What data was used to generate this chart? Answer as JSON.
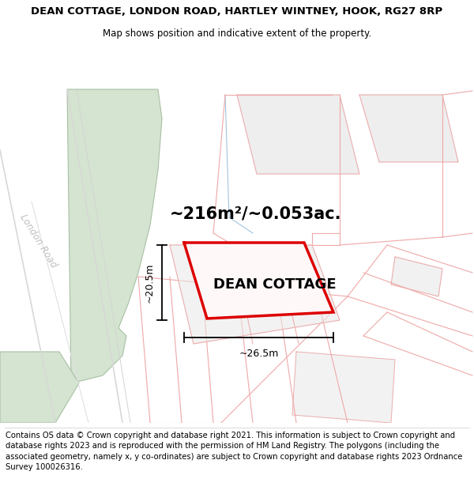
{
  "title_line1": "DEAN COTTAGE, LONDON ROAD, HARTLEY WINTNEY, HOOK, RG27 8RP",
  "title_line2": "Map shows position and indicative extent of the property.",
  "property_label": "DEAN COTTAGE",
  "area_text": "~216m²/~0.053ac.",
  "dim_height": "~20.5m",
  "dim_width": "~26.5m",
  "footer_text": "Contains OS data © Crown copyright and database right 2021. This information is subject to Crown copyright and database rights 2023 and is reproduced with the permission of HM Land Registry. The polygons (including the associated geometry, namely x, y co-ordinates) are subject to Crown copyright and database rights 2023 Ordnance Survey 100026316.",
  "bg_color": "#ffffff",
  "map_bg": "#f9f8f6",
  "boundary_color": "#f0a8a8",
  "highlight_color": "#dd0000",
  "green_color": "#d4e4d0",
  "green_edge": "#a8c0a4",
  "gray_fill": "#e8e8e8",
  "road_text_color": "#c0c0c0",
  "blue_line_color": "#a0c4e0",
  "title_fontsize": 9.5,
  "subtitle_fontsize": 8.5,
  "label_fontsize": 13,
  "area_fontsize": 15,
  "dim_fontsize": 9,
  "footer_fontsize": 7.2,
  "london_road_fontsize": 8.5
}
